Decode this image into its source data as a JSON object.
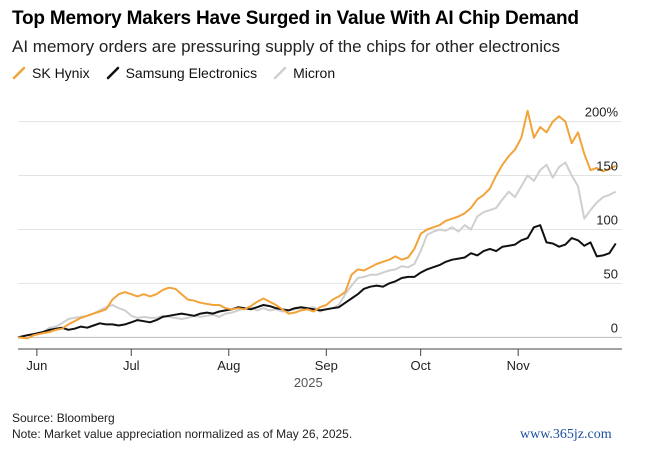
{
  "header": {
    "title": "Top Memory Makers Have Surged in Value With AI Chip Demand",
    "subtitle": "AI memory orders are pressuring supply of the chips for other electronics"
  },
  "legend": [
    {
      "name": "SK Hynix",
      "color": "#f2a33a"
    },
    {
      "name": "Samsung Electronics",
      "color": "#111111"
    },
    {
      "name": "Micron",
      "color": "#cfcfcf"
    }
  ],
  "footer": {
    "source": "Source: Bloomberg",
    "note": "Note: Market value appreciation normalized as of May 26, 2025."
  },
  "watermark": "www.365jz.com",
  "chart_data": {
    "type": "line",
    "title": "Top Memory Makers Have Surged in Value With AI Chip Demand",
    "subtitle": "AI memory orders are pressuring supply of the chips for other electronics",
    "xlabel": "2025",
    "ylabel": "",
    "x_unit": "days since May 26, 2025",
    "xlim": [
      0,
      192
    ],
    "ylim": [
      -8,
      220
    ],
    "y_ticks": [
      {
        "value": 0,
        "label": "0"
      },
      {
        "value": 50,
        "label": "50"
      },
      {
        "value": 100,
        "label": "100"
      },
      {
        "value": 150,
        "label": "150"
      },
      {
        "value": 200,
        "label": "200%"
      }
    ],
    "x_ticks": [
      {
        "value": 6,
        "label": "Jun"
      },
      {
        "value": 36,
        "label": "Jul"
      },
      {
        "value": 67,
        "label": "Aug"
      },
      {
        "value": 98,
        "label": "Sep"
      },
      {
        "value": 128,
        "label": "Oct"
      },
      {
        "value": 159,
        "label": "Nov"
      }
    ],
    "year_label": {
      "value": 98,
      "label": "2025"
    },
    "series": [
      {
        "name": "SK Hynix",
        "color": "#f2a33a",
        "points": [
          [
            0,
            0
          ],
          [
            3,
            -1
          ],
          [
            5,
            2
          ],
          [
            8,
            4
          ],
          [
            10,
            5
          ],
          [
            12,
            7
          ],
          [
            14,
            8
          ],
          [
            16,
            12
          ],
          [
            18,
            15
          ],
          [
            20,
            18
          ],
          [
            22,
            20
          ],
          [
            24,
            22
          ],
          [
            26,
            24
          ],
          [
            28,
            26
          ],
          [
            30,
            35
          ],
          [
            32,
            40
          ],
          [
            34,
            42
          ],
          [
            36,
            40
          ],
          [
            38,
            38
          ],
          [
            40,
            40
          ],
          [
            42,
            38
          ],
          [
            44,
            40
          ],
          [
            46,
            44
          ],
          [
            48,
            46
          ],
          [
            50,
            45
          ],
          [
            52,
            40
          ],
          [
            54,
            35
          ],
          [
            56,
            34
          ],
          [
            58,
            32
          ],
          [
            60,
            31
          ],
          [
            62,
            30
          ],
          [
            64,
            30
          ],
          [
            66,
            27
          ],
          [
            68,
            26
          ],
          [
            70,
            27
          ],
          [
            72,
            26
          ],
          [
            74,
            29
          ],
          [
            76,
            33
          ],
          [
            78,
            36
          ],
          [
            80,
            33
          ],
          [
            82,
            30
          ],
          [
            84,
            26
          ],
          [
            86,
            22
          ],
          [
            88,
            23
          ],
          [
            90,
            25
          ],
          [
            92,
            26
          ],
          [
            94,
            24
          ],
          [
            96,
            28
          ],
          [
            98,
            30
          ],
          [
            100,
            35
          ],
          [
            102,
            38
          ],
          [
            104,
            42
          ],
          [
            106,
            58
          ],
          [
            108,
            63
          ],
          [
            110,
            62
          ],
          [
            112,
            65
          ],
          [
            114,
            68
          ],
          [
            116,
            70
          ],
          [
            118,
            72
          ],
          [
            120,
            75
          ],
          [
            122,
            72
          ],
          [
            124,
            74
          ],
          [
            126,
            82
          ],
          [
            128,
            96
          ],
          [
            130,
            100
          ],
          [
            132,
            102
          ],
          [
            134,
            104
          ],
          [
            136,
            108
          ],
          [
            138,
            110
          ],
          [
            140,
            112
          ],
          [
            142,
            115
          ],
          [
            144,
            120
          ],
          [
            146,
            128
          ],
          [
            148,
            132
          ],
          [
            150,
            138
          ],
          [
            152,
            150
          ],
          [
            154,
            160
          ],
          [
            156,
            168
          ],
          [
            158,
            174
          ],
          [
            160,
            185
          ],
          [
            162,
            210
          ],
          [
            164,
            185
          ],
          [
            166,
            195
          ],
          [
            168,
            190
          ],
          [
            170,
            200
          ],
          [
            172,
            205
          ],
          [
            174,
            200
          ],
          [
            176,
            180
          ],
          [
            178,
            190
          ],
          [
            180,
            170
          ],
          [
            182,
            155
          ],
          [
            184,
            157
          ],
          [
            186,
            154
          ],
          [
            188,
            156
          ],
          [
            190,
            159
          ]
        ]
      },
      {
        "name": "Samsung Electronics",
        "color": "#111111",
        "points": [
          [
            0,
            0
          ],
          [
            3,
            2
          ],
          [
            5,
            3
          ],
          [
            8,
            5
          ],
          [
            10,
            7
          ],
          [
            12,
            8
          ],
          [
            14,
            9
          ],
          [
            16,
            7
          ],
          [
            18,
            8
          ],
          [
            20,
            10
          ],
          [
            22,
            9
          ],
          [
            24,
            11
          ],
          [
            26,
            13
          ],
          [
            28,
            12
          ],
          [
            30,
            12
          ],
          [
            32,
            11
          ],
          [
            34,
            12
          ],
          [
            36,
            14
          ],
          [
            38,
            16
          ],
          [
            40,
            15
          ],
          [
            42,
            14
          ],
          [
            44,
            16
          ],
          [
            46,
            19
          ],
          [
            48,
            20
          ],
          [
            50,
            21
          ],
          [
            52,
            22
          ],
          [
            54,
            21
          ],
          [
            56,
            20
          ],
          [
            58,
            22
          ],
          [
            60,
            23
          ],
          [
            62,
            22
          ],
          [
            64,
            24
          ],
          [
            66,
            25
          ],
          [
            68,
            26
          ],
          [
            70,
            28
          ],
          [
            72,
            27
          ],
          [
            74,
            26
          ],
          [
            76,
            28
          ],
          [
            78,
            30
          ],
          [
            80,
            29
          ],
          [
            82,
            27
          ],
          [
            84,
            26
          ],
          [
            86,
            25
          ],
          [
            88,
            27
          ],
          [
            90,
            28
          ],
          [
            92,
            27
          ],
          [
            94,
            26
          ],
          [
            96,
            25
          ],
          [
            98,
            26
          ],
          [
            100,
            27
          ],
          [
            102,
            28
          ],
          [
            104,
            32
          ],
          [
            106,
            36
          ],
          [
            108,
            40
          ],
          [
            110,
            45
          ],
          [
            112,
            47
          ],
          [
            114,
            48
          ],
          [
            116,
            47
          ],
          [
            118,
            50
          ],
          [
            120,
            52
          ],
          [
            122,
            55
          ],
          [
            124,
            56
          ],
          [
            126,
            56
          ],
          [
            128,
            60
          ],
          [
            130,
            63
          ],
          [
            132,
            65
          ],
          [
            134,
            67
          ],
          [
            136,
            70
          ],
          [
            138,
            72
          ],
          [
            140,
            73
          ],
          [
            142,
            74
          ],
          [
            144,
            78
          ],
          [
            146,
            76
          ],
          [
            148,
            80
          ],
          [
            150,
            82
          ],
          [
            152,
            80
          ],
          [
            154,
            84
          ],
          [
            156,
            85
          ],
          [
            158,
            86
          ],
          [
            160,
            90
          ],
          [
            162,
            92
          ],
          [
            164,
            102
          ],
          [
            166,
            104
          ],
          [
            168,
            88
          ],
          [
            170,
            87
          ],
          [
            172,
            84
          ],
          [
            174,
            86
          ],
          [
            176,
            92
          ],
          [
            178,
            90
          ],
          [
            180,
            85
          ],
          [
            182,
            88
          ],
          [
            184,
            75
          ],
          [
            186,
            76
          ],
          [
            188,
            78
          ],
          [
            190,
            87
          ]
        ]
      },
      {
        "name": "Micron",
        "color": "#cfcfcf",
        "points": [
          [
            0,
            0
          ],
          [
            3,
            2
          ],
          [
            5,
            3
          ],
          [
            8,
            5
          ],
          [
            10,
            9
          ],
          [
            12,
            10
          ],
          [
            14,
            13
          ],
          [
            16,
            17
          ],
          [
            18,
            18
          ],
          [
            20,
            19
          ],
          [
            22,
            20
          ],
          [
            24,
            22
          ],
          [
            26,
            25
          ],
          [
            28,
            28
          ],
          [
            30,
            30
          ],
          [
            32,
            27
          ],
          [
            34,
            25
          ],
          [
            36,
            20
          ],
          [
            38,
            18
          ],
          [
            40,
            19
          ],
          [
            42,
            18
          ],
          [
            44,
            18
          ],
          [
            46,
            20
          ],
          [
            48,
            19
          ],
          [
            50,
            18
          ],
          [
            52,
            17
          ],
          [
            54,
            18
          ],
          [
            56,
            20
          ],
          [
            58,
            19
          ],
          [
            60,
            20
          ],
          [
            62,
            21
          ],
          [
            64,
            19
          ],
          [
            66,
            22
          ],
          [
            68,
            23
          ],
          [
            70,
            25
          ],
          [
            72,
            27
          ],
          [
            74,
            28
          ],
          [
            76,
            25
          ],
          [
            78,
            27
          ],
          [
            80,
            25
          ],
          [
            82,
            26
          ],
          [
            84,
            24
          ],
          [
            86,
            25
          ],
          [
            88,
            26
          ],
          [
            90,
            27
          ],
          [
            92,
            27
          ],
          [
            94,
            28
          ],
          [
            96,
            24
          ],
          [
            98,
            26
          ],
          [
            100,
            27
          ],
          [
            102,
            30
          ],
          [
            104,
            40
          ],
          [
            106,
            48
          ],
          [
            108,
            55
          ],
          [
            110,
            56
          ],
          [
            112,
            58
          ],
          [
            114,
            58
          ],
          [
            116,
            60
          ],
          [
            118,
            62
          ],
          [
            120,
            63
          ],
          [
            122,
            66
          ],
          [
            124,
            65
          ],
          [
            126,
            68
          ],
          [
            128,
            80
          ],
          [
            130,
            95
          ],
          [
            132,
            98
          ],
          [
            134,
            100
          ],
          [
            136,
            99
          ],
          [
            138,
            102
          ],
          [
            140,
            98
          ],
          [
            142,
            104
          ],
          [
            144,
            100
          ],
          [
            146,
            112
          ],
          [
            148,
            116
          ],
          [
            150,
            118
          ],
          [
            152,
            120
          ],
          [
            154,
            128
          ],
          [
            156,
            135
          ],
          [
            158,
            130
          ],
          [
            160,
            140
          ],
          [
            162,
            150
          ],
          [
            164,
            145
          ],
          [
            166,
            155
          ],
          [
            168,
            160
          ],
          [
            170,
            148
          ],
          [
            172,
            158
          ],
          [
            174,
            162
          ],
          [
            176,
            150
          ],
          [
            178,
            140
          ],
          [
            180,
            110
          ],
          [
            182,
            118
          ],
          [
            184,
            125
          ],
          [
            186,
            130
          ],
          [
            188,
            132
          ],
          [
            190,
            135
          ]
        ]
      }
    ]
  }
}
